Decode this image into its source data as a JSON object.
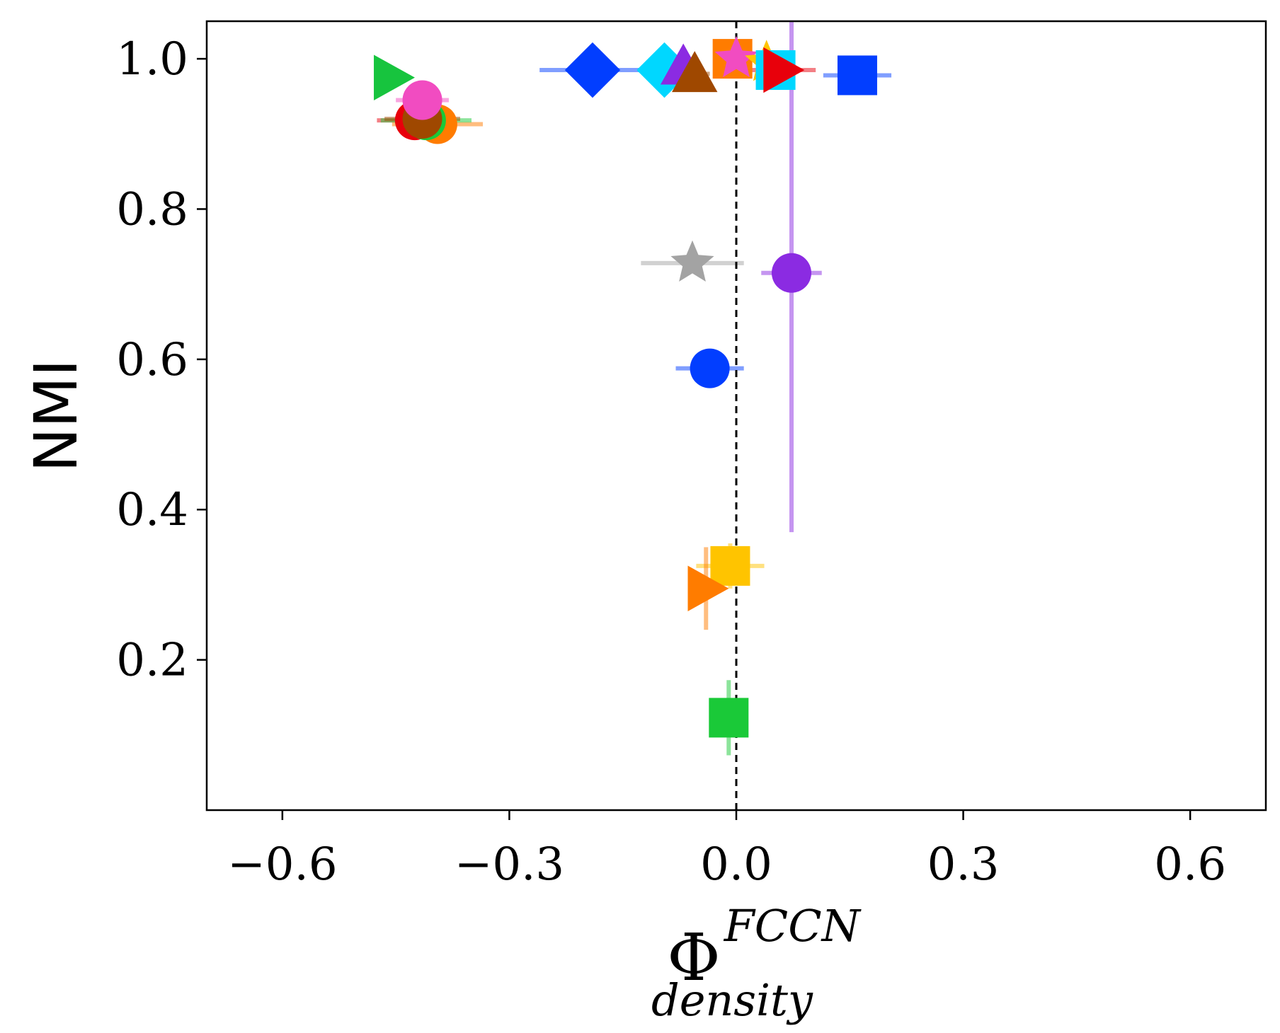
{
  "chart_data": {
    "type": "scatter",
    "xlabel_base": "Φ",
    "xlabel_sup": "FCCN",
    "xlabel_sub": "density",
    "ylabel": "NMI",
    "xlim": [
      -0.7,
      0.7
    ],
    "ylim": [
      0.0,
      1.05
    ],
    "xticks": [
      -0.6,
      -0.3,
      0.0,
      0.3,
      0.6
    ],
    "xtick_labels": [
      "−0.6",
      "−0.3",
      "0.0",
      "0.3",
      "0.6"
    ],
    "yticks": [
      0.2,
      0.4,
      0.6,
      0.8,
      1.0
    ],
    "ytick_labels": [
      "0.2",
      "0.4",
      "0.6",
      "0.8",
      "1.0"
    ],
    "grid": false,
    "reference_line": {
      "x": 0.0,
      "style": "dashed",
      "color": "#000000"
    },
    "points": [
      {
        "marker": "triangle-right",
        "color": "#17c43e",
        "x": -0.455,
        "y": 0.975,
        "xerr": 0.0,
        "yerr": 0.0
      },
      {
        "marker": "circle",
        "color": "#e8000b",
        "x": -0.425,
        "y": 0.918,
        "xerr": 0.05,
        "yerr": 0.0
      },
      {
        "marker": "circle",
        "color": "#ff7c00",
        "x": -0.395,
        "y": 0.913,
        "xerr": 0.06,
        "yerr": 0.0
      },
      {
        "marker": "circle",
        "color": "#1ac938",
        "x": -0.41,
        "y": 0.918,
        "xerr": 0.06,
        "yerr": 0.0
      },
      {
        "marker": "circle",
        "color": "#9f4800",
        "x": -0.415,
        "y": 0.92,
        "xerr": 0.05,
        "yerr": 0.0
      },
      {
        "marker": "circle",
        "color": "#f14cc1",
        "x": -0.415,
        "y": 0.945,
        "xerr": 0.035,
        "yerr": 0.0
      },
      {
        "marker": "diamond",
        "color": "#023eff",
        "x": -0.19,
        "y": 0.985,
        "xerr": 0.07,
        "yerr": 0.0
      },
      {
        "marker": "diamond",
        "color": "#00d7ff",
        "x": -0.095,
        "y": 0.985,
        "xerr": 0.035,
        "yerr": 0.0
      },
      {
        "marker": "triangle-up",
        "color": "#8b2be2",
        "x": -0.07,
        "y": 0.99,
        "xerr": 0.02,
        "yerr": 0.0
      },
      {
        "marker": "triangle-up",
        "color": "#9f4800",
        "x": -0.055,
        "y": 0.98,
        "xerr": 0.02,
        "yerr": 0.0
      },
      {
        "marker": "square",
        "color": "#ff7c00",
        "x": -0.005,
        "y": 1.0,
        "xerr": 0.02,
        "yerr": 0.0
      },
      {
        "marker": "star",
        "color": "#f14cc1",
        "x": 0.0,
        "y": 1.0,
        "xerr": 0.01,
        "yerr": 0.0
      },
      {
        "marker": "star",
        "color": "#ffc400",
        "x": 0.04,
        "y": 0.995,
        "xerr": 0.01,
        "yerr": 0.0
      },
      {
        "marker": "square",
        "color": "#00d7ff",
        "x": 0.052,
        "y": 0.985,
        "xerr": 0.015,
        "yerr": 0.0
      },
      {
        "marker": "triangle-right",
        "color": "#e8000b",
        "x": 0.06,
        "y": 0.985,
        "xerr": 0.045,
        "yerr": 0.0
      },
      {
        "marker": "square",
        "color": "#023eff",
        "x": 0.16,
        "y": 0.978,
        "xerr": 0.045,
        "yerr": 0.0
      },
      {
        "marker": "star",
        "color": "#a3a3a3",
        "x": -0.058,
        "y": 0.728,
        "xerr": 0.068,
        "yerr": 0.0
      },
      {
        "marker": "circle",
        "color": "#8b2be2",
        "x": 0.073,
        "y": 0.715,
        "xerr": 0.04,
        "yerr_lower": 0.345,
        "yerr_upper": 0.34
      },
      {
        "marker": "circle",
        "color": "#023eff",
        "x": -0.035,
        "y": 0.588,
        "xerr": 0.045,
        "yerr": 0.0
      },
      {
        "marker": "square",
        "color": "#ffc400",
        "x": -0.008,
        "y": 0.325,
        "xerr": 0.045,
        "yerr": 0.03
      },
      {
        "marker": "triangle-right",
        "color": "#ff7c00",
        "x": -0.04,
        "y": 0.295,
        "xerr": 0.0,
        "yerr": 0.055
      },
      {
        "marker": "square",
        "color": "#1ac938",
        "x": -0.01,
        "y": 0.123,
        "xerr": 0.0,
        "yerr": 0.05
      }
    ]
  }
}
